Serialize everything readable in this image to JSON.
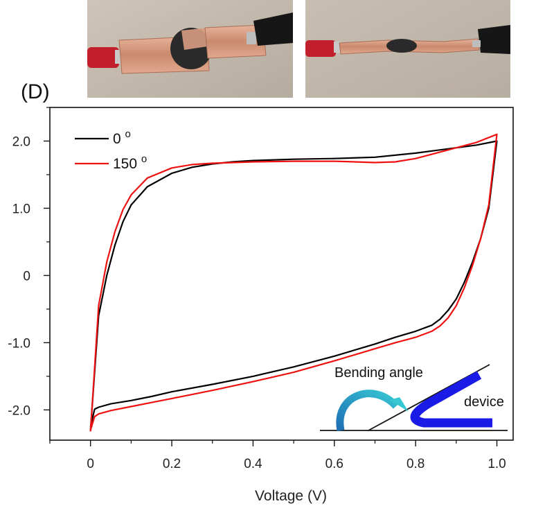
{
  "panel_label": "(D)",
  "photos": [
    {
      "name": "flat-device-photo"
    },
    {
      "name": "bent-device-photo"
    }
  ],
  "inset": {
    "bending_label": "Bending angle",
    "device_label": "device"
  },
  "colors": {
    "series_0": "#000000",
    "series_150": "#ee1111",
    "device": "#1b1be8",
    "arrow_start": "#1f6fb5",
    "arrow_end": "#36c7d3"
  },
  "chart_data": {
    "type": "line",
    "title": "",
    "xlabel": "Voltage (V)",
    "ylabel": "",
    "xlim": [
      -0.1,
      1.04
    ],
    "ylim": [
      -2.45,
      2.5
    ],
    "xticks": [
      0,
      0.2,
      0.4,
      0.6,
      0.8,
      1.0
    ],
    "xtick_labels": [
      "0",
      "0.2",
      "0.4",
      "0.6",
      "0.8",
      "1.0"
    ],
    "yticks": [
      -2.0,
      -1.0,
      0,
      1.0,
      2.0
    ],
    "ytick_labels": [
      "-2.0",
      "-1.0",
      "0",
      "1.0",
      "2.0"
    ],
    "legend": {
      "position": "top-left"
    },
    "series": [
      {
        "name": "0 ",
        "degree": "o",
        "color": "#000000",
        "x": [
          0.0,
          0.02,
          0.04,
          0.06,
          0.08,
          0.1,
          0.14,
          0.2,
          0.25,
          0.3,
          0.35,
          0.4,
          0.5,
          0.6,
          0.7,
          0.8,
          0.9,
          0.95,
          1.0,
          0.98,
          0.96,
          0.94,
          0.92,
          0.9,
          0.88,
          0.86,
          0.84,
          0.8,
          0.75,
          0.7,
          0.6,
          0.5,
          0.4,
          0.3,
          0.2,
          0.15,
          0.1,
          0.05,
          0.02,
          0.01,
          0.0
        ],
        "y": [
          -2.3,
          -0.6,
          0.0,
          0.45,
          0.8,
          1.05,
          1.32,
          1.52,
          1.61,
          1.66,
          1.69,
          1.71,
          1.73,
          1.74,
          1.76,
          1.82,
          1.9,
          1.94,
          2.0,
          1.0,
          0.55,
          0.2,
          -0.1,
          -0.35,
          -0.52,
          -0.65,
          -0.74,
          -0.83,
          -0.92,
          -1.02,
          -1.2,
          -1.36,
          -1.5,
          -1.62,
          -1.73,
          -1.8,
          -1.86,
          -1.91,
          -1.96,
          -1.99,
          -2.25
        ]
      },
      {
        "name": "150 ",
        "degree": "o",
        "color": "#ee1111",
        "x": [
          0.0,
          0.02,
          0.04,
          0.06,
          0.08,
          0.1,
          0.14,
          0.2,
          0.25,
          0.3,
          0.35,
          0.4,
          0.5,
          0.6,
          0.65,
          0.7,
          0.75,
          0.8,
          0.9,
          0.95,
          1.0,
          0.98,
          0.96,
          0.94,
          0.92,
          0.9,
          0.88,
          0.86,
          0.84,
          0.8,
          0.75,
          0.7,
          0.6,
          0.5,
          0.4,
          0.3,
          0.2,
          0.15,
          0.1,
          0.05,
          0.02,
          0.01,
          0.0
        ],
        "y": [
          -2.32,
          -0.45,
          0.2,
          0.65,
          0.98,
          1.2,
          1.45,
          1.6,
          1.65,
          1.67,
          1.68,
          1.69,
          1.7,
          1.7,
          1.69,
          1.68,
          1.69,
          1.74,
          1.9,
          1.98,
          2.1,
          1.05,
          0.55,
          0.15,
          -0.18,
          -0.45,
          -0.63,
          -0.75,
          -0.83,
          -0.92,
          -1.0,
          -1.09,
          -1.27,
          -1.44,
          -1.58,
          -1.71,
          -1.83,
          -1.89,
          -1.95,
          -2.01,
          -2.06,
          -2.1,
          -2.3
        ]
      }
    ]
  }
}
